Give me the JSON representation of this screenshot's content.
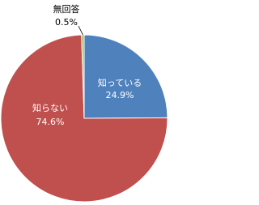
{
  "chart_data": {
    "type": "pie",
    "categories": [
      "知っている",
      "知らない",
      "無回答"
    ],
    "values": [
      24.9,
      74.6,
      0.5
    ],
    "value_labels": [
      "24.9%",
      "74.6%",
      "0.5%"
    ],
    "colors": [
      "#4f81bd",
      "#c0504d",
      "#9bbb59"
    ]
  }
}
